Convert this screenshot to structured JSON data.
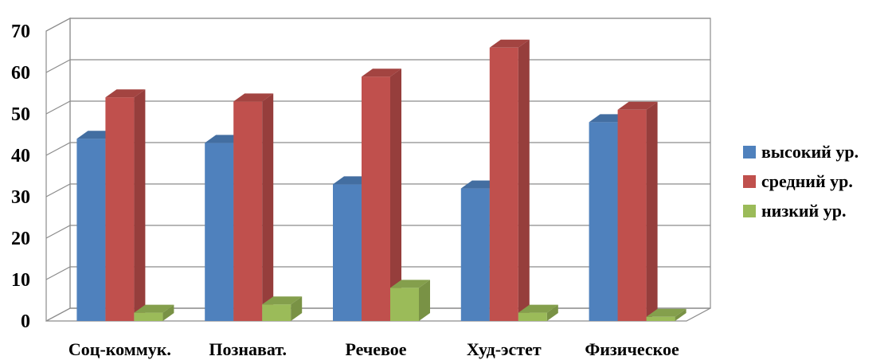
{
  "chart_data": {
    "type": "bar",
    "categories": [
      "Соц-коммук.",
      "Познават.",
      "Речевое",
      "Худ-эстет",
      "Физическое"
    ],
    "series": [
      {
        "name": "высокий ур.",
        "color": "#4f81bd",
        "values": [
          44,
          43,
          33,
          32,
          48
        ]
      },
      {
        "name": "средний ур.",
        "color": "#c0504d",
        "values": [
          54,
          53,
          59,
          66,
          51
        ]
      },
      {
        "name": "низкий ур.",
        "color": "#9bbb59",
        "values": [
          2,
          4,
          8,
          2,
          1
        ]
      }
    ],
    "ylim": [
      0,
      70
    ],
    "yticks": [
      0,
      10,
      20,
      30,
      40,
      50,
      60,
      70
    ],
    "grid": true,
    "legend": "right",
    "style": "3d-clustered-column"
  }
}
